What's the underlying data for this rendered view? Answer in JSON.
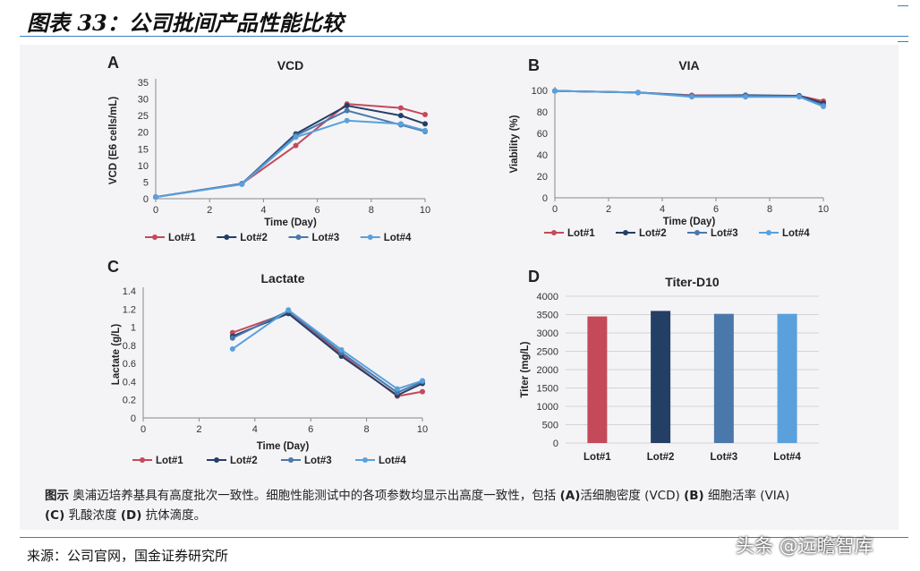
{
  "header": {
    "title": "图表 33：公司批间产品性能比较"
  },
  "caption": {
    "lead": "图示",
    "text": " 奥浦迈培养基具有高度批次一致性。细胞性能测试中的各项参数均显示出高度一致性，包括 ",
    "a": "(A)",
    "a_text": "活细胞密度 (VCD) ",
    "b": "(B)",
    "b_text": " 细胞活率 (VIA) ",
    "c": "(C)",
    "c_text": " 乳酸浓度 ",
    "d": "(D)",
    "d_text": " 抗体滴度。"
  },
  "source": {
    "text": "来源：公司官网，国金证券研究所"
  },
  "watermark": {
    "text": "头条 @远瞻智库"
  },
  "colors": {
    "lot1": "#c44a5a",
    "lot2": "#243f66",
    "lot3": "#4a78aa",
    "lot4": "#5aa0dc"
  },
  "chart_data": [
    {
      "panel": "A",
      "type": "line",
      "title": "VCD",
      "xlabel": "Time (Day)",
      "ylabel": "VCD (E6 cells/mL)",
      "xlim": [
        0,
        10
      ],
      "ylim": [
        0,
        35
      ],
      "xticks": [
        0,
        2,
        4,
        6,
        8,
        10
      ],
      "yticks": [
        0,
        5,
        10,
        15,
        20,
        25,
        30,
        35
      ],
      "x": [
        0,
        3.2,
        5.2,
        7.1,
        9.1,
        10
      ],
      "legend": "bottom",
      "series": [
        {
          "name": "Lot#1",
          "values": [
            0.5,
            4.5,
            16,
            28.5,
            27.3,
            25.3
          ]
        },
        {
          "name": "Lot#2",
          "values": [
            0.5,
            4.5,
            19.5,
            28,
            25,
            22.5
          ]
        },
        {
          "name": "Lot#3",
          "values": [
            0.5,
            4.5,
            19,
            26.5,
            22.2,
            20.2
          ]
        },
        {
          "name": "Lot#4",
          "values": [
            0.5,
            4.3,
            18.5,
            23.5,
            22.5,
            20.5
          ]
        }
      ]
    },
    {
      "panel": "B",
      "type": "line",
      "title": "VIA",
      "xlabel": "Time (Day)",
      "ylabel": "Viability (%)",
      "xlim": [
        0,
        10
      ],
      "ylim": [
        0,
        100
      ],
      "xticks": [
        0,
        2,
        4,
        6,
        8,
        10
      ],
      "yticks": [
        0,
        20,
        40,
        60,
        80,
        100
      ],
      "x": [
        0,
        3.1,
        5.1,
        7.1,
        9.1,
        10
      ],
      "legend": "bottom",
      "series": [
        {
          "name": "Lot#1",
          "values": [
            99.5,
            98,
            95.5,
            95,
            95,
            90
          ]
        },
        {
          "name": "Lot#2",
          "values": [
            99.5,
            98,
            95,
            95.5,
            95,
            88
          ]
        },
        {
          "name": "Lot#3",
          "values": [
            99.5,
            98,
            95,
            95,
            94.5,
            86
          ]
        },
        {
          "name": "Lot#4",
          "values": [
            99.5,
            98,
            94,
            94,
            94,
            85
          ]
        }
      ]
    },
    {
      "panel": "C",
      "type": "line",
      "title": "Lactate",
      "xlabel": "Time (Day)",
      "ylabel": "Lactate (g/L)",
      "xlim": [
        0,
        10
      ],
      "ylim": [
        0,
        1.4
      ],
      "xticks": [
        0,
        2,
        4,
        6,
        8,
        10
      ],
      "yticks": [
        0,
        0.2,
        0.4,
        0.6,
        0.8,
        1.0,
        1.2,
        1.4
      ],
      "x": [
        3.2,
        5.2,
        7.1,
        9.1,
        10
      ],
      "legend": "bottom",
      "series": [
        {
          "name": "Lot#1",
          "values": [
            0.94,
            1.16,
            0.7,
            0.24,
            0.29
          ]
        },
        {
          "name": "Lot#2",
          "values": [
            0.9,
            1.15,
            0.68,
            0.25,
            0.38
          ]
        },
        {
          "name": "Lot#3",
          "values": [
            0.88,
            1.18,
            0.72,
            0.28,
            0.4
          ]
        },
        {
          "name": "Lot#4",
          "values": [
            0.76,
            1.19,
            0.75,
            0.32,
            0.41
          ]
        }
      ]
    },
    {
      "panel": "D",
      "type": "bar",
      "title": "Titer-D10",
      "xlabel": "",
      "ylabel": "Titer (mg/L)",
      "ylim": [
        0,
        4000
      ],
      "yticks": [
        0,
        500,
        1000,
        1500,
        2000,
        2500,
        3000,
        3500,
        4000
      ],
      "categories": [
        "Lot#1",
        "Lot#2",
        "Lot#3",
        "Lot#4"
      ],
      "values": [
        3450,
        3600,
        3520,
        3520
      ]
    }
  ]
}
